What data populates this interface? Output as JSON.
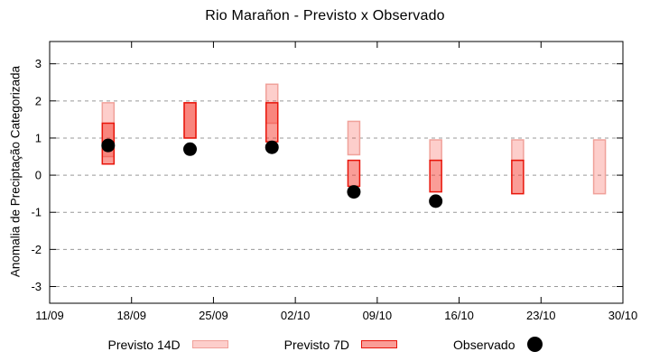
{
  "chart_data": {
    "type": "bar",
    "subtype": "forecast-range-bars-with-observed-scatter",
    "title": "Rio Marañon - Previsto x Observado",
    "xlabel": "",
    "ylabel": "Anomalia de Preciptação Categorizada",
    "ylim": [
      -3.45,
      3.6
    ],
    "y_ticks": [
      3,
      2,
      1,
      0,
      -1,
      -2,
      -3
    ],
    "x_tick_labels": [
      "11/09",
      "18/09",
      "25/09",
      "02/10",
      "09/10",
      "16/10",
      "23/10",
      "30/10"
    ],
    "x_tick_days": [
      0,
      7,
      14,
      21,
      28,
      35,
      42,
      49
    ],
    "x_range_days": 49,
    "grid": "horizontal-dashed",
    "legend_position": "bottom",
    "colors": {
      "base_red": "246,60,48",
      "f14_fill": "rgba(246,60,48,0.25)",
      "f14_border": "#f0a19a",
      "f7_fill": "rgba(246,60,48,0.5)",
      "f7_border": "#e8150a",
      "observed": "#000000",
      "grid": "#999999",
      "axis": "#000000"
    },
    "series": [
      {
        "id": "previsto-14d",
        "name": "Previsto 14D",
        "type": "range-bar",
        "points": [
          {
            "date": "16/09",
            "day": 5,
            "lo": 0.5,
            "hi": 1.95
          },
          {
            "date": "23/09",
            "day": 12,
            "lo": 1.0,
            "hi": 1.95
          },
          {
            "date": "30/09",
            "day": 19,
            "lo": 1.4,
            "hi": 2.45
          },
          {
            "date": "07/10",
            "day": 26,
            "lo": 0.55,
            "hi": 1.45
          },
          {
            "date": "14/10",
            "day": 33,
            "lo": 0.4,
            "hi": 0.95
          },
          {
            "date": "21/10",
            "day": 40,
            "lo": 0.4,
            "hi": 0.95
          },
          {
            "date": "28/10",
            "day": 47,
            "lo": -0.5,
            "hi": 0.95
          }
        ]
      },
      {
        "id": "previsto-7d",
        "name": "Previsto 7D",
        "type": "range-bar",
        "points": [
          {
            "date": "16/09",
            "day": 5,
            "lo": 0.3,
            "hi": 1.4
          },
          {
            "date": "23/09",
            "day": 12,
            "lo": 1.0,
            "hi": 1.95
          },
          {
            "date": "30/09",
            "day": 19,
            "lo": 0.9,
            "hi": 1.95
          },
          {
            "date": "07/10",
            "day": 26,
            "lo": -0.3,
            "hi": 0.4
          },
          {
            "date": "14/10",
            "day": 33,
            "lo": -0.45,
            "hi": 0.4
          },
          {
            "date": "21/10",
            "day": 40,
            "lo": -0.5,
            "hi": 0.4
          }
        ]
      },
      {
        "id": "observado",
        "name": "Observado",
        "type": "scatter",
        "points": [
          {
            "date": "16/09",
            "day": 5,
            "y": 0.8
          },
          {
            "date": "23/09",
            "day": 12,
            "y": 0.7
          },
          {
            "date": "30/09",
            "day": 19,
            "y": 0.75
          },
          {
            "date": "07/10",
            "day": 26,
            "y": -0.45
          },
          {
            "date": "14/10",
            "day": 33,
            "y": -0.7
          }
        ]
      }
    ]
  }
}
